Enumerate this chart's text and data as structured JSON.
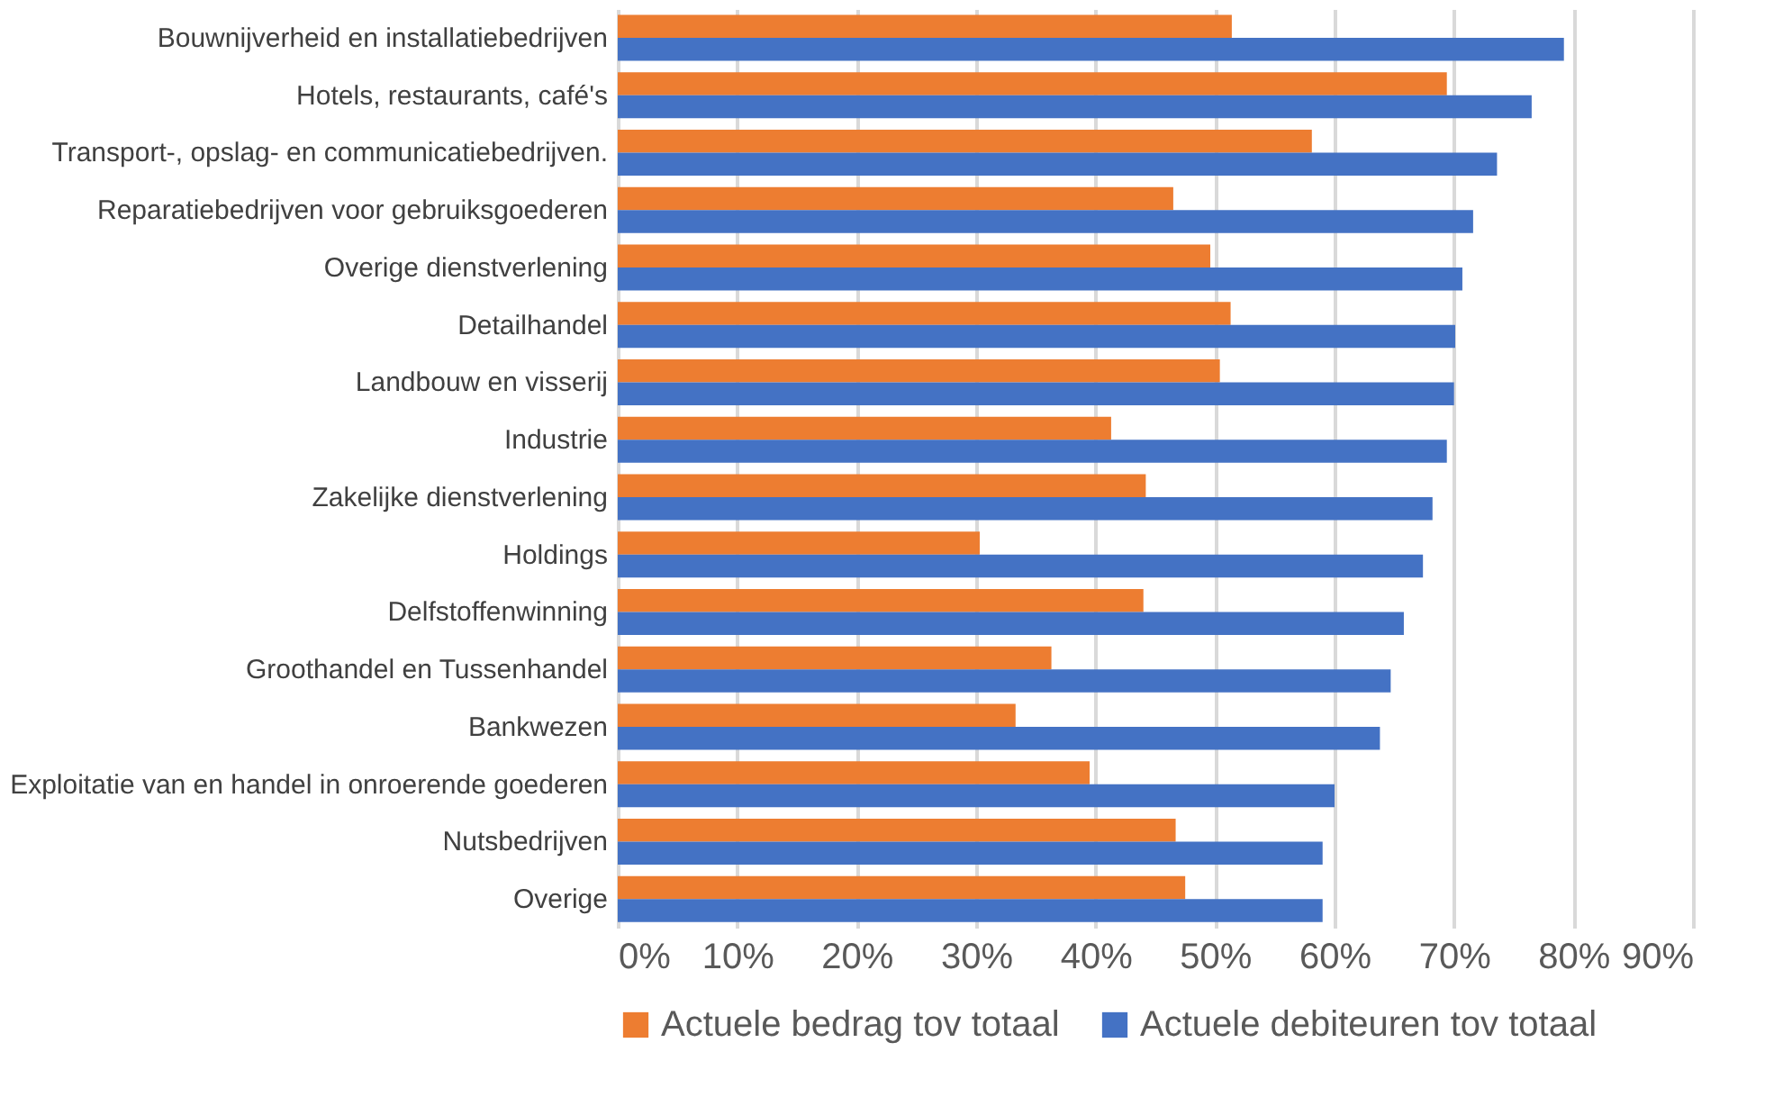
{
  "chart_data": {
    "type": "bar",
    "orientation": "horizontal",
    "categories": [
      "Bouwnijverheid en installatiebedrijven",
      "Hotels, restaurants, café's",
      "Transport-, opslag- en communicatiebedrijven.",
      "Reparatiebedrijven voor gebruiksgoederen",
      "Overige dienstverlening",
      "Detailhandel",
      "Landbouw en visserij",
      "Industrie ",
      "Zakelijke dienstverlening",
      "Holdings",
      "Delfstoffenwinning",
      "Groothandel en Tussenhandel",
      "Bankwezen",
      "Exploitatie van en handel in onroerende goederen",
      "Nutsbedrijven",
      "Overige"
    ],
    "series": [
      {
        "name": "Actuele bedrag tov totaal",
        "color": "#ed7d31",
        "values": [
          51.4,
          69.4,
          58.1,
          46.5,
          49.6,
          51.3,
          50.4,
          41.3,
          44.2,
          30.3,
          44.0,
          36.3,
          33.3,
          39.5,
          46.7,
          47.5
        ]
      },
      {
        "name": "Actuele debiteuren tov totaal",
        "color": "#4472c4",
        "values": [
          79.2,
          76.5,
          73.6,
          71.6,
          70.7,
          70.1,
          70.0,
          69.4,
          68.2,
          67.4,
          65.8,
          64.7,
          63.8,
          60.0,
          59.0,
          59.0
        ]
      }
    ],
    "xlim": [
      0,
      90
    ],
    "xticks": [
      {
        "value": 0,
        "label": "0%"
      },
      {
        "value": 10,
        "label": "10%"
      },
      {
        "value": 20,
        "label": "20%"
      },
      {
        "value": 30,
        "label": "30%"
      },
      {
        "value": 40,
        "label": "40%"
      },
      {
        "value": 50,
        "label": "50%"
      },
      {
        "value": 60,
        "label": "60%"
      },
      {
        "value": 70,
        "label": "70%"
      },
      {
        "value": 80,
        "label": "80%"
      },
      {
        "value": 90,
        "label": "90%"
      }
    ],
    "grid": "x",
    "legend": "bottom"
  }
}
